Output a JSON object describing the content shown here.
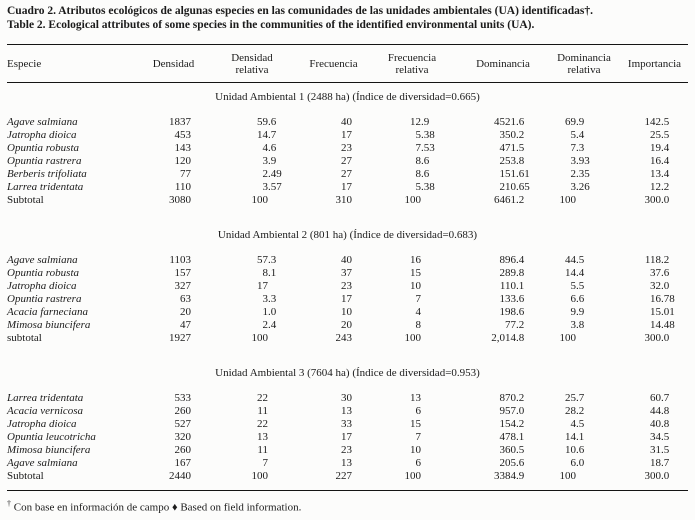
{
  "title_es": "Cuadro 2. Atributos ecológicos de algunas especies en las comunidades de las unidades ambientales (UA) identificadas†.",
  "title_en": "Table 2. Ecological attributes of some species in the communities of the identified environmental units (UA).",
  "columns": [
    "Especie",
    "Densidad",
    "Densidad\nrelativa",
    "Frecuencia",
    "Frecuencia\nrelativa",
    "Dominancia",
    "Dominancia\nrelativa",
    "Importancia"
  ],
  "sections": [
    {
      "title": "Unidad Ambiental 1 (2488 ha) (Índice de diversidad=0.665)",
      "rows": [
        {
          "species": "Agave salmiana",
          "italic": true,
          "values": [
            "1837",
            "59.6",
            "40",
            "12.9",
            "4521.6",
            "69.9",
            "142.5"
          ]
        },
        {
          "species": "Jatropha dioica",
          "italic": true,
          "values": [
            "453",
            "14.7",
            "17",
            "5.38",
            "350.2",
            "5.4",
            "25.5"
          ]
        },
        {
          "species": "Opuntia robusta",
          "italic": true,
          "values": [
            "143",
            "4.6",
            "23",
            "7.53",
            "471.5",
            "7.3",
            "19.4"
          ]
        },
        {
          "species": "Opuntia rastrera",
          "italic": true,
          "values": [
            "120",
            "3.9",
            "27",
            "8.6",
            "253.8",
            "3.93",
            "16.4"
          ]
        },
        {
          "species": "Berberis trifoliata",
          "italic": true,
          "values": [
            "77",
            "2.49",
            "27",
            "8.6",
            "151.61",
            "2.35",
            "13.4"
          ]
        },
        {
          "species": "Larrea tridentata",
          "italic": true,
          "values": [
            "110",
            "3.57",
            "17",
            "5.38",
            "210.65",
            "3.26",
            "12.2"
          ]
        },
        {
          "species": "Subtotal",
          "italic": false,
          "values": [
            "3080",
            "100",
            "310",
            "100",
            "6461.2",
            "100",
            "300.0"
          ]
        }
      ]
    },
    {
      "title": "Unidad Ambiental 2 (801 ha) (Índice de diversidad=0.683)",
      "rows": [
        {
          "species": "Agave salmiana",
          "italic": true,
          "values": [
            "1103",
            "57.3",
            "40",
            "16",
            "896.4",
            "44.5",
            "118.2"
          ]
        },
        {
          "species": "Opuntia robusta",
          "italic": true,
          "values": [
            "157",
            "8.1",
            "37",
            "15",
            "289.8",
            "14.4",
            "37.6"
          ]
        },
        {
          "species": "Jatropha dioica",
          "italic": true,
          "values": [
            "327",
            "17",
            "23",
            "10",
            "110.1",
            "5.5",
            "32.0"
          ]
        },
        {
          "species": "Opuntia rastrera",
          "italic": true,
          "values": [
            "63",
            "3.3",
            "17",
            "7",
            "133.6",
            "6.6",
            "16.78"
          ]
        },
        {
          "species": "Acacia farneciana",
          "italic": true,
          "values": [
            "20",
            "1.0",
            "10",
            "4",
            "198.6",
            "9.9",
            "15.01"
          ]
        },
        {
          "species": "Mimosa biuncifera",
          "italic": true,
          "values": [
            "47",
            "2.4",
            "20",
            "8",
            "77.2",
            "3.8",
            "14.48"
          ]
        },
        {
          "species": "subtotal",
          "italic": false,
          "values": [
            "1927",
            "100",
            "243",
            "100",
            "2,014.8",
            "100",
            "300.0"
          ]
        }
      ]
    },
    {
      "title": "Unidad Ambiental 3 (7604 ha) (Índice de diversidad=0.953)",
      "rows": [
        {
          "species": "Larrea tridentata",
          "italic": true,
          "values": [
            "533",
            "22",
            "30",
            "13",
            "870.2",
            "25.7",
            "60.7"
          ]
        },
        {
          "species": "Acacia vernicosa",
          "italic": true,
          "values": [
            "260",
            "11",
            "13",
            "6",
            "957.0",
            "28.2",
            "44.8"
          ]
        },
        {
          "species": "Jatropha dioica",
          "italic": true,
          "values": [
            "527",
            "22",
            "33",
            "15",
            "154.2",
            "4.5",
            "40.8"
          ]
        },
        {
          "species": "Opuntia leucotricha",
          "italic": true,
          "values": [
            "320",
            "13",
            "17",
            "7",
            "478.1",
            "14.1",
            "34.5"
          ]
        },
        {
          "species": "Mimosa biuncifera",
          "italic": true,
          "values": [
            "260",
            "11",
            "23",
            "10",
            "360.5",
            "10.6",
            "31.5"
          ]
        },
        {
          "species": "Agave salmiana",
          "italic": true,
          "values": [
            "167",
            "7",
            "13",
            "6",
            "205.6",
            "6.0",
            "18.7"
          ]
        },
        {
          "species": "Subtotal",
          "italic": false,
          "values": [
            "2440",
            "100",
            "227",
            "100",
            "3384.9",
            "100",
            "300.0"
          ]
        }
      ]
    }
  ],
  "footnote_marker": "†",
  "footnote_text": "Con base en información de campo ♦ Based on field information."
}
